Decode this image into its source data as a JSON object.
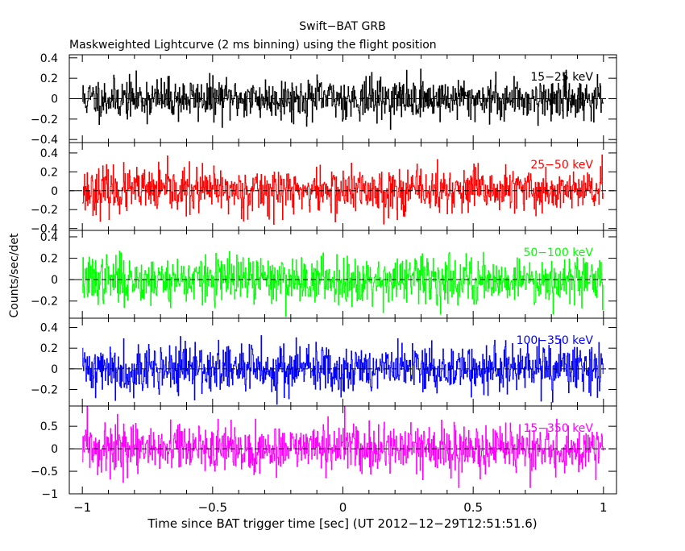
{
  "chart_data": {
    "type": "line",
    "title": "Swift−BAT GRB",
    "subtitle": "Maskweighted Lightcurve (2 ms binning) using the flight position",
    "xlabel": "Time since BAT trigger time [sec] (UT 2012−12−29T12:51:51.6)",
    "ylabel": "Counts/sec/det",
    "xlim": [
      -1.05,
      1.05
    ],
    "x_ticks": [
      -1,
      -0.5,
      0,
      0.5,
      1
    ],
    "x_tick_labels": [
      "−1",
      "−0.5",
      "0",
      "0.5",
      "1"
    ],
    "x_range": [
      -1,
      1
    ],
    "bin_width": 0.002,
    "grid": false,
    "zero_line": "dashed",
    "panels": [
      {
        "name": "15−25 keV",
        "color": "#000000",
        "ylim": [
          -0.43,
          0.43
        ],
        "y_ticks": [
          -0.4,
          -0.2,
          0,
          0.2,
          0.4
        ],
        "y_tick_labels": [
          "−0.4",
          "−0.2",
          "0",
          "0.2",
          "0.4"
        ],
        "noise_sigma": 0.1,
        "seed": 11
      },
      {
        "name": "25−50 keV",
        "color": "#ff0000",
        "ylim": [
          -0.42,
          0.51
        ],
        "y_ticks": [
          -0.4,
          -0.2,
          0,
          0.2,
          0.4
        ],
        "y_tick_labels": [
          "−0.4",
          "−0.2",
          "0",
          "0.2",
          "0.4"
        ],
        "noise_sigma": 0.12,
        "seed": 23
      },
      {
        "name": "50−100 keV",
        "color": "#00ff00",
        "ylim": [
          -0.36,
          0.46
        ],
        "y_ticks": [
          -0.2,
          0,
          0.2,
          0.4
        ],
        "y_tick_labels": [
          "−0.2",
          "0",
          "0.2",
          "0.4"
        ],
        "noise_sigma": 0.11,
        "seed": 37
      },
      {
        "name": "100−350 keV",
        "color": "#0000ff",
        "ylim": [
          -0.36,
          0.49
        ],
        "y_ticks": [
          -0.2,
          0,
          0.2,
          0.4
        ],
        "y_tick_labels": [
          "−0.2",
          "0",
          "0.2",
          "0.4"
        ],
        "noise_sigma": 0.12,
        "seed": 41
      },
      {
        "name": "15−350 keV",
        "color": "#ff00ff",
        "ylim": [
          -1.0,
          0.95
        ],
        "y_ticks": [
          -1,
          -0.5,
          0,
          0.5
        ],
        "y_tick_labels": [
          "−1",
          "−0.5",
          "0",
          "0.5"
        ],
        "noise_sigma": 0.26,
        "seed": 59
      }
    ]
  }
}
